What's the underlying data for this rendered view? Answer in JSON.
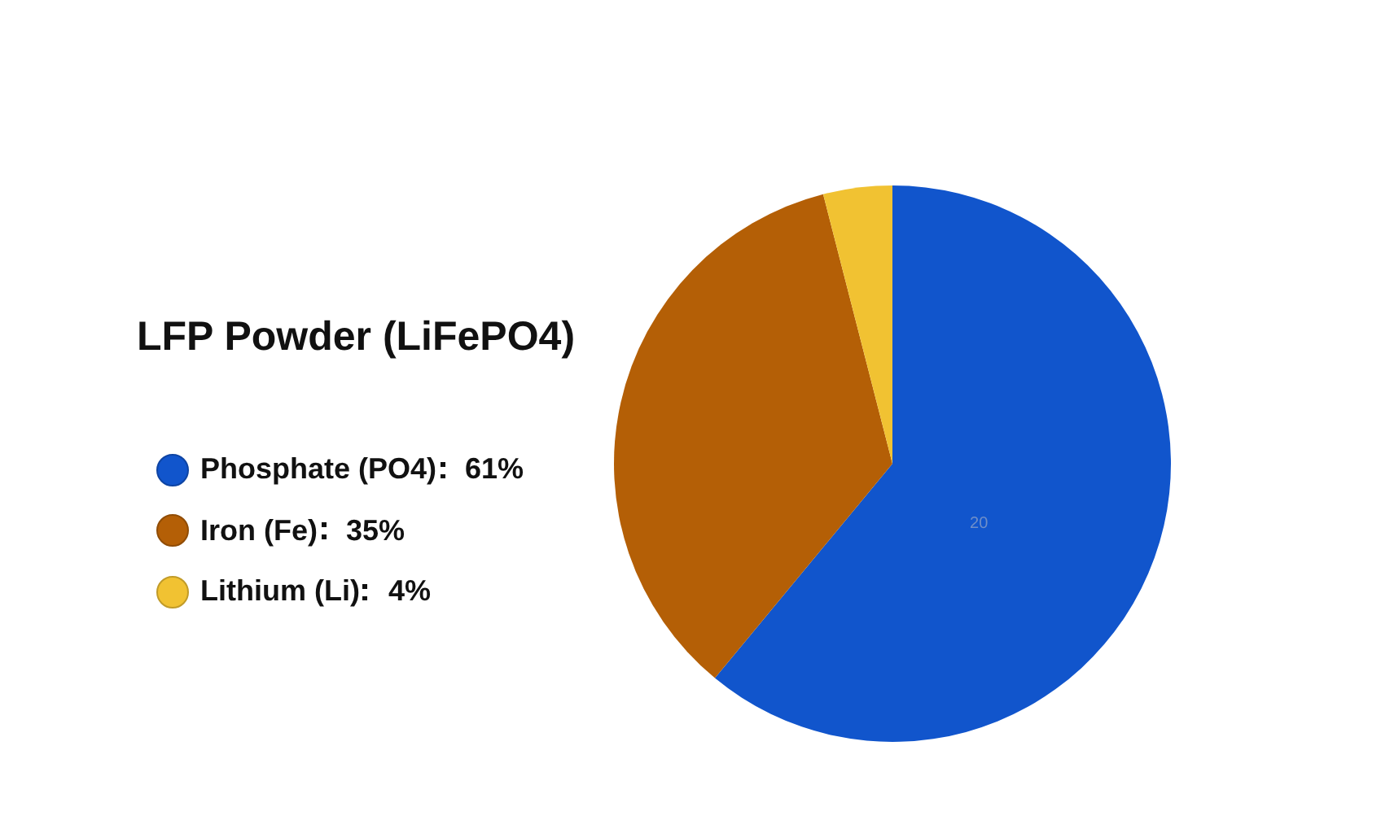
{
  "chart_data": {
    "type": "pie",
    "title": "LFP Powder (LiFePO4)",
    "categories": [
      "Phosphate (PO4)",
      "Iron (Fe)",
      "Lithium (Li)"
    ],
    "values": [
      61,
      35,
      4
    ],
    "value_labels": [
      "61%",
      "35%",
      "4%"
    ],
    "colors": [
      "#1155cc",
      "#b45f06",
      "#f1c232"
    ],
    "legend": "left",
    "annotations": [
      "20"
    ]
  }
}
